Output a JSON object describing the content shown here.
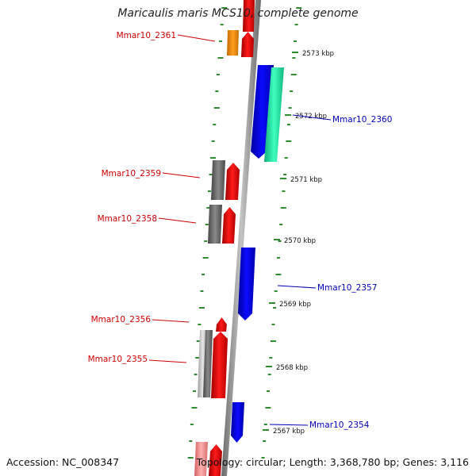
{
  "title": "Maricaulis maris MCS10, complete genome",
  "accession": "Accession: NC_008347",
  "summary": "Topology: circular; Length: 3,368,780 bp; Genes: 3,116",
  "colors": {
    "forward_label": "#cc0000",
    "reverse_label": "#0000bb",
    "tick": "#2e8b2e",
    "backbone": "#8a8a8a",
    "red": "#ee0000",
    "blue": "#0000ee",
    "orange": "#f0900a",
    "teal": "#22e0a0",
    "gray": "#666666",
    "lightgray": "#c0c0c0",
    "pink": "#f08080"
  },
  "scale_ticks": [
    "2573 kbp",
    "2572 kbp",
    "2571 kbp",
    "2570 kbp",
    "2569 kbp",
    "2568 kbp",
    "2567 kbp"
  ],
  "genes": [
    {
      "label": "Mmar10_2361",
      "strand": "forward"
    },
    {
      "label": "Mmar10_2360",
      "strand": "reverse"
    },
    {
      "label": "Mmar10_2359",
      "strand": "forward"
    },
    {
      "label": "Mmar10_2358",
      "strand": "forward"
    },
    {
      "label": "Mmar10_2357",
      "strand": "reverse"
    },
    {
      "label": "Mmar10_2356",
      "strand": "forward"
    },
    {
      "label": "Mmar10_2355",
      "strand": "forward"
    },
    {
      "label": "Mmar10_2354",
      "strand": "reverse"
    }
  ]
}
